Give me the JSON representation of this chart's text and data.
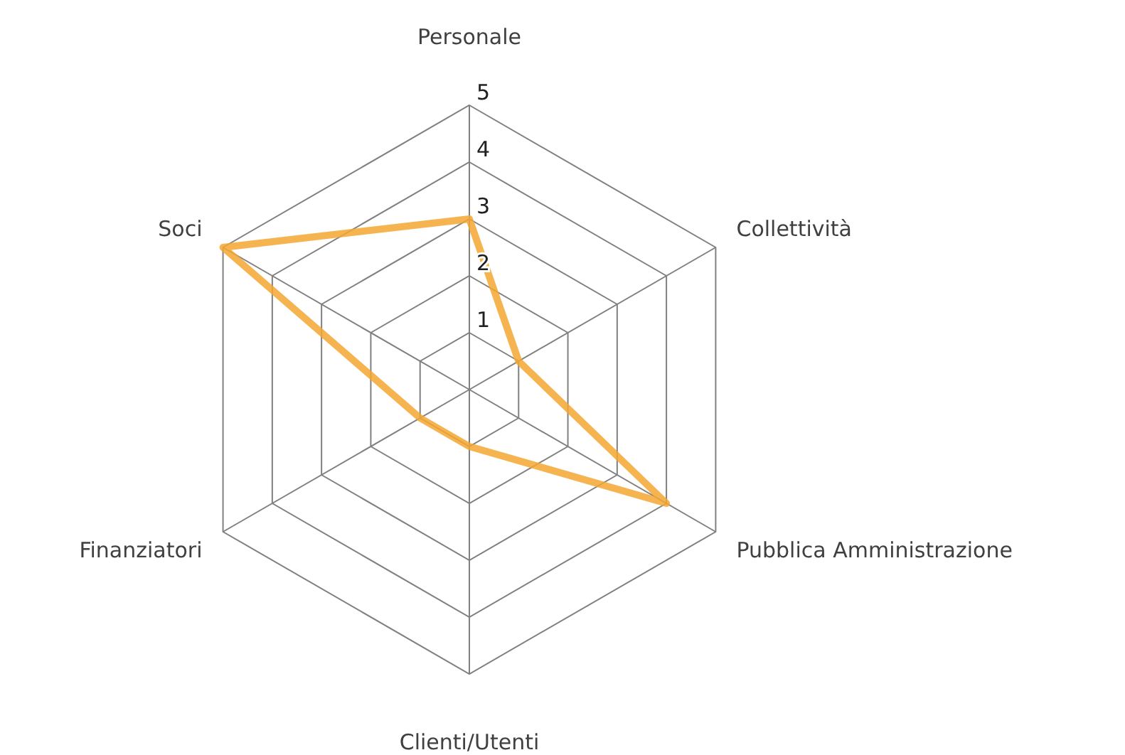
{
  "chart_data": {
    "type": "radar",
    "categories": [
      "Personale",
      "Collettività",
      "Pubblica Amministrazione",
      "Clienti/Utenti",
      "Finanziatori",
      "Soci"
    ],
    "series": [
      {
        "color": "#f5a733",
        "values": [
          3,
          1,
          4,
          1,
          1,
          5
        ]
      }
    ],
    "ylim": [
      0,
      5
    ],
    "yticks": [
      1,
      2,
      3,
      4,
      5
    ],
    "grid": true
  }
}
